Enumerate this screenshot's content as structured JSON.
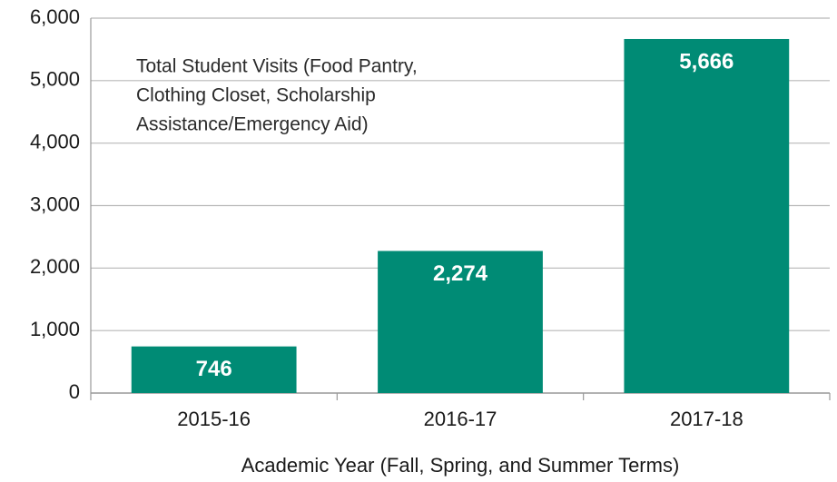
{
  "chart_data": {
    "type": "bar",
    "title": [
      "Total Student Visits (Food Pantry,",
      "Clothing Closet, Scholarship",
      "Assistance/Emergency Aid)"
    ],
    "x_label": "Academic Year (Fall, Spring, and Summer Terms)",
    "categories": [
      "2015-16",
      "2016-17",
      "2017-18"
    ],
    "values": [
      746,
      2274,
      5666
    ],
    "value_labels": [
      "746",
      "2,274",
      "5,666"
    ],
    "color": "#008b75",
    "ylim": [
      0,
      6000
    ],
    "yticks": [
      0,
      {
        "value": 1000,
        "label": "1,000"
      },
      {
        "value": 2000,
        "label": "2,000"
      },
      {
        "value": 3000,
        "label": "3,000"
      },
      {
        "value": 4000,
        "label": "4,000"
      },
      {
        "value": 5000,
        "label": "5,000"
      },
      {
        "value": 6000,
        "label": "6,000"
      }
    ],
    "grid": true
  }
}
